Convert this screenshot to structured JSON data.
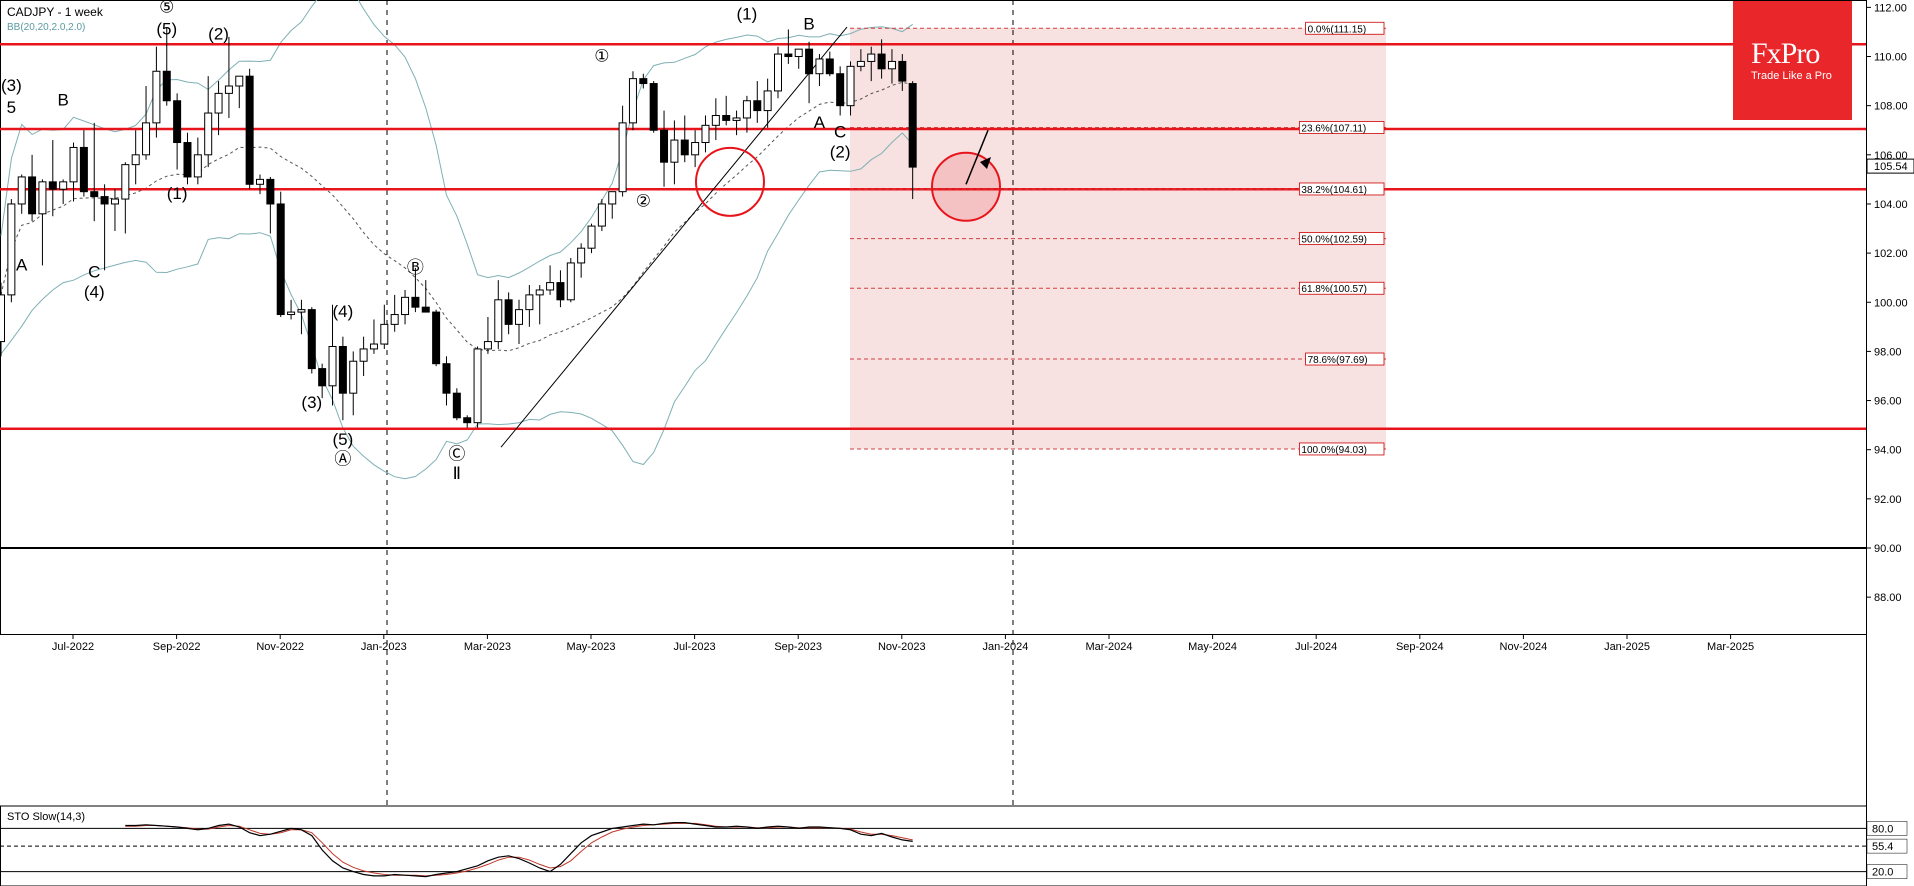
{
  "chart_title": "CADJPY - 1 week",
  "bb_label": "BB(20,20,2.0,2.0)",
  "stoch_label": "STO Slow(14,3)",
  "current_price": "105.54",
  "logo": {
    "name": "FxPro",
    "tagline": "Trade Like a Pro",
    "color": "#e9262a"
  },
  "colors": {
    "up": "#ffffff",
    "down": "#000000",
    "level": "#e8141b",
    "fib_zone": "#f7e1e1",
    "bb": "#7fb0b5",
    "stoch_k": "#000000",
    "stoch_d": "#c0392b"
  },
  "chart_data": {
    "type": "candlestick",
    "title": "CADJPY - 1 week",
    "y_axis": {
      "ticks": [
        "112.00",
        "110.00",
        "108.00",
        "106.00",
        "104.00",
        "102.00",
        "100.00",
        "98.00",
        "96.00",
        "94.00",
        "92.00",
        "90.00",
        "88.00"
      ],
      "range": [
        86.5,
        112.3
      ]
    },
    "x_axis": {
      "ticks": [
        "Jul-2022",
        "Sep-2022",
        "Nov-2022",
        "Jan-2023",
        "Mar-2023",
        "May-2023",
        "Jul-2023",
        "Sep-2023",
        "Nov-2023",
        "Jan-2024",
        "Mar-2024",
        "May-2024",
        "Jul-2024",
        "Sep-2024",
        "Nov-2024",
        "Jan-2025",
        "Mar-2025"
      ]
    },
    "candles": [
      [
        98.4,
        100.8,
        97.8,
        100.3
      ],
      [
        100.3,
        104.2,
        100,
        104
      ],
      [
        104,
        105.2,
        103.6,
        105.1
      ],
      [
        105.1,
        106,
        103.3,
        103.6
      ],
      [
        103.6,
        105,
        101.5,
        104.9
      ],
      [
        104.9,
        106.6,
        103.5,
        104.6
      ],
      [
        104.6,
        105,
        104,
        104.9
      ],
      [
        104.9,
        106.5,
        104.1,
        106.3
      ],
      [
        106.3,
        107,
        104.3,
        104.5
      ],
      [
        104.5,
        107.3,
        103.3,
        104.3
      ],
      [
        104.3,
        104.8,
        101.3,
        104
      ],
      [
        104,
        104.6,
        102.9,
        104.2
      ],
      [
        104.2,
        105.7,
        102.8,
        105.6
      ],
      [
        105.6,
        107,
        104.8,
        106
      ],
      [
        106,
        108.8,
        105.8,
        107.3
      ],
      [
        107.3,
        110.4,
        106.7,
        109.4
      ],
      [
        109.4,
        111.2,
        108,
        108.2
      ],
      [
        108.2,
        108.5,
        105.4,
        106.5
      ],
      [
        106.5,
        106.9,
        104.8,
        105.1
      ],
      [
        105.1,
        106.7,
        104.8,
        106
      ],
      [
        106,
        109.2,
        105.5,
        107.7
      ],
      [
        107.7,
        109,
        106.8,
        108.5
      ],
      [
        108.5,
        110.8,
        107.5,
        108.8
      ],
      [
        108.8,
        109,
        107.9,
        109.2
      ],
      [
        109.2,
        109.5,
        104.6,
        104.8
      ],
      [
        104.8,
        105.2,
        104.4,
        105
      ],
      [
        105,
        105.1,
        102.8,
        104
      ],
      [
        104,
        104.5,
        99.4,
        99.5
      ],
      [
        99.5,
        100.1,
        99.3,
        99.6
      ],
      [
        99.6,
        100.1,
        98.7,
        99.7
      ],
      [
        99.7,
        99.8,
        97.1,
        97.3
      ],
      [
        97.3,
        97.5,
        96.1,
        96.6
      ],
      [
        96.6,
        99.9,
        95.8,
        98.2
      ],
      [
        98.2,
        98.6,
        95.2,
        96.3
      ],
      [
        96.3,
        98,
        95.4,
        97.6
      ],
      [
        97.6,
        98.6,
        97,
        98.1
      ],
      [
        98.1,
        99.3,
        97.9,
        98.3
      ],
      [
        98.3,
        99.9,
        98.1,
        99.1
      ],
      [
        99.1,
        100.3,
        98.8,
        99.5
      ],
      [
        99.5,
        100.5,
        99.1,
        100.2
      ],
      [
        100.2,
        101.4,
        99.6,
        99.8
      ],
      [
        99.8,
        100.9,
        99.6,
        99.6
      ],
      [
        99.6,
        99.7,
        97.4,
        97.5
      ],
      [
        97.5,
        97.8,
        95.8,
        96.3
      ],
      [
        96.3,
        96.5,
        95.2,
        95.3
      ],
      [
        95.3,
        95.4,
        94.9,
        95.1
      ],
      [
        95.1,
        98.2,
        94.9,
        98.1
      ],
      [
        98.1,
        99.4,
        97.9,
        98.4
      ],
      [
        98.4,
        100.9,
        98.1,
        100.1
      ],
      [
        100.1,
        100.4,
        98.7,
        99.1
      ],
      [
        99.1,
        100.1,
        98.3,
        99.7
      ],
      [
        99.7,
        100.7,
        99,
        100.3
      ],
      [
        100.3,
        100.7,
        99.1,
        100.5
      ],
      [
        100.5,
        101.5,
        100.3,
        100.8
      ],
      [
        100.8,
        101.3,
        99.8,
        100.1
      ],
      [
        100.1,
        101.8,
        100,
        101.6
      ],
      [
        101.6,
        102.4,
        101,
        102.2
      ],
      [
        102.2,
        103.2,
        102,
        103.1
      ],
      [
        103.1,
        104.2,
        102.9,
        104
      ],
      [
        104,
        104.3,
        103.4,
        104.5
      ],
      [
        104.5,
        108,
        104.3,
        107.3
      ],
      [
        107.3,
        109.4,
        107,
        109.1
      ],
      [
        109.1,
        109.3,
        108.7,
        108.9
      ],
      [
        108.9,
        109,
        106.9,
        107
      ],
      [
        107,
        107.8,
        104.7,
        105.7
      ],
      [
        105.7,
        107.4,
        104.8,
        106.6
      ],
      [
        106.6,
        107.6,
        105.7,
        106
      ],
      [
        106,
        107,
        105.5,
        106.5
      ],
      [
        106.5,
        107.6,
        106.1,
        107.2
      ],
      [
        107.2,
        108.3,
        106.6,
        107.6
      ],
      [
        107.6,
        108.4,
        107.2,
        107.4
      ],
      [
        107.4,
        107.8,
        106.8,
        107.5
      ],
      [
        107.5,
        108.4,
        106.9,
        108.2
      ],
      [
        108.2,
        109,
        107.3,
        107.8
      ],
      [
        107.8,
        109.1,
        107.1,
        108.6
      ],
      [
        108.6,
        110.4,
        108.3,
        110.1
      ],
      [
        110.1,
        111.1,
        109.7,
        110
      ],
      [
        110,
        110.3,
        109.5,
        110.3
      ],
      [
        110.3,
        110.6,
        108.1,
        109.3
      ],
      [
        109.3,
        110.1,
        108.8,
        109.9
      ],
      [
        109.9,
        110.2,
        109.2,
        109.3
      ],
      [
        109.3,
        109.6,
        107.6,
        108
      ],
      [
        108,
        109.8,
        107.6,
        109.6
      ],
      [
        109.6,
        110.3,
        109.4,
        109.8
      ],
      [
        109.8,
        110.4,
        109,
        110.1
      ],
      [
        110.1,
        110.7,
        109.1,
        109.5
      ],
      [
        109.5,
        110.3,
        108.9,
        109.8
      ],
      [
        109.8,
        110.1,
        108.6,
        109
      ],
      [
        108.9,
        109,
        104.2,
        105.5
      ]
    ],
    "horizontal_levels": [
      110.5,
      107.05,
      104.6,
      94.85,
      90.0
    ],
    "fibonacci": [
      {
        "label": "0.0%(111.15)",
        "value": 111.15
      },
      {
        "label": "23.6%(107.11)",
        "value": 107.11
      },
      {
        "label": "38.2%(104.61)",
        "value": 104.61
      },
      {
        "label": "50.0%(102.59)",
        "value": 102.59
      },
      {
        "label": "61.8%(100.57)",
        "value": 100.57
      },
      {
        "label": "78.6%(97.69)",
        "value": 97.69
      },
      {
        "label": "100.0%(94.03)",
        "value": 94.03
      }
    ],
    "wave_labels": [
      {
        "text": "(3)",
        "i": 1,
        "y": 108.6
      },
      {
        "text": "5",
        "i": 1,
        "y": 107.7
      },
      {
        "text": "A",
        "i": 2,
        "y": 101.3
      },
      {
        "text": "B",
        "i": 6,
        "y": 108
      },
      {
        "text": "C",
        "i": 9,
        "y": 101
      },
      {
        "text": "(4)",
        "i": 9,
        "y": 100.2
      },
      {
        "text": "⑤",
        "i": 16,
        "y": 111.8
      },
      {
        "text": "(5)",
        "i": 16,
        "y": 110.9
      },
      {
        "text": "(1)",
        "i": 17,
        "y": 104.2
      },
      {
        "text": "(2)",
        "i": 21,
        "y": 110.7
      },
      {
        "text": "(3)",
        "i": 30,
        "y": 95.7
      },
      {
        "text": "(4)",
        "i": 33,
        "y": 99.4
      },
      {
        "text": "(5)",
        "i": 33,
        "y": 94.2
      },
      {
        "text": "Ⓐ",
        "i": 33,
        "y": 93.4
      },
      {
        "text": "Ⓑ",
        "i": 40,
        "y": 101.2
      },
      {
        "text": "Ⓒ",
        "i": 44,
        "y": 93.6
      },
      {
        "text": "Ⅱ",
        "i": 44,
        "y": 92.8
      },
      {
        "text": "①",
        "i": 58,
        "y": 109.8
      },
      {
        "text": "②",
        "i": 62,
        "y": 103.9
      },
      {
        "text": "(1)",
        "i": 72,
        "y": 111.5
      },
      {
        "text": "B",
        "i": 78,
        "y": 111.1
      },
      {
        "text": "A",
        "i": 79,
        "y": 107.1
      },
      {
        "text": "C",
        "i": 81,
        "y": 106.7
      },
      {
        "text": "(2)",
        "i": 81,
        "y": 105.9
      }
    ],
    "stochastic": {
      "ticks": [
        "80.0",
        "55.4",
        "20.0"
      ],
      "k": [
        84,
        84,
        85,
        84,
        83,
        82,
        80,
        78,
        80,
        84,
        86,
        82,
        74,
        70,
        72,
        76,
        80,
        78,
        70,
        50,
        35,
        25,
        20,
        16,
        14,
        14,
        16,
        15,
        14,
        13,
        16,
        18,
        20,
        24,
        28,
        35,
        40,
        42,
        38,
        32,
        25,
        20,
        30,
        45,
        60,
        70,
        75,
        80,
        82,
        84,
        86,
        85,
        87,
        88,
        88,
        86,
        84,
        82,
        82,
        83,
        82,
        80,
        82,
        83,
        82,
        80,
        82,
        82,
        81,
        80,
        78,
        72,
        70,
        73,
        68,
        64,
        62
      ],
      "d": [
        83,
        83,
        84,
        84,
        83,
        82,
        81,
        79,
        79,
        82,
        84,
        83,
        78,
        73,
        72,
        74,
        78,
        78,
        74,
        60,
        45,
        33,
        26,
        21,
        18,
        16,
        15,
        15,
        15,
        14,
        15,
        16,
        18,
        21,
        25,
        30,
        36,
        40,
        40,
        36,
        30,
        25,
        27,
        35,
        48,
        60,
        68,
        75,
        79,
        82,
        84,
        85,
        86,
        87,
        87,
        87,
        85,
        83,
        82,
        82,
        82,
        81,
        81,
        82,
        82,
        81,
        81,
        81,
        81,
        80,
        79,
        75,
        72,
        72,
        70,
        67,
        64
      ]
    }
  }
}
